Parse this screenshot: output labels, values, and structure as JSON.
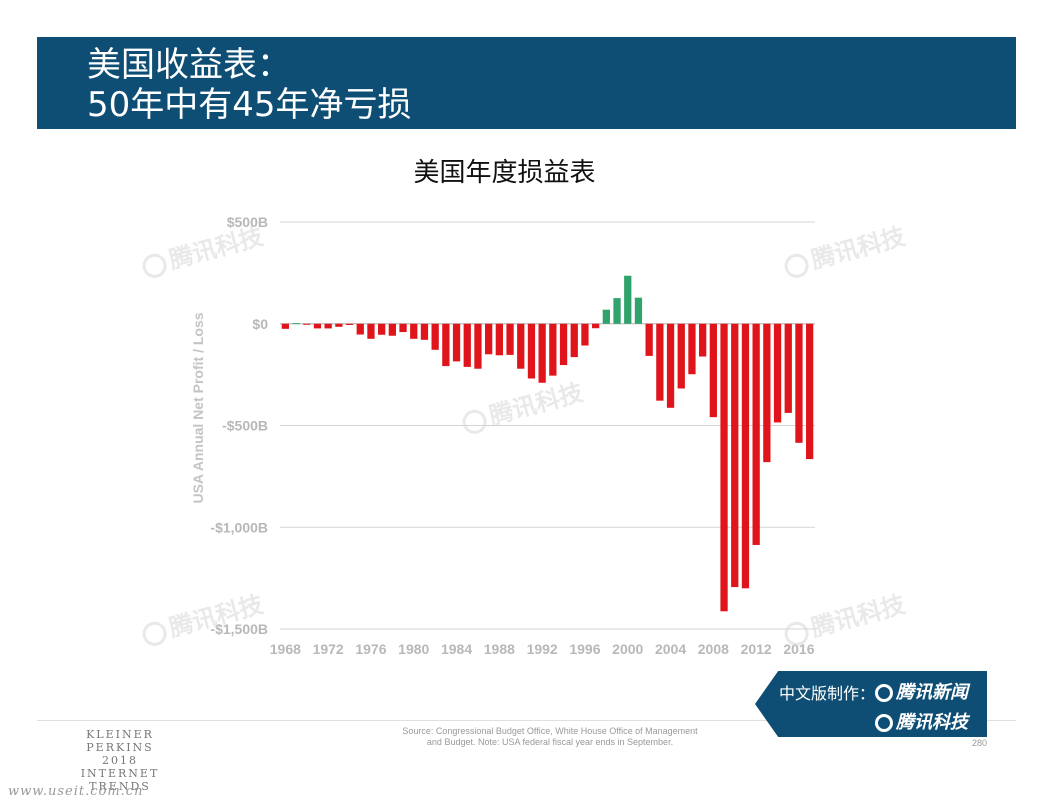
{
  "header": {
    "line1": "美国收益表：",
    "line2": "50年中有45年净亏损"
  },
  "chart_data": {
    "type": "bar",
    "title": "美国年度损益表",
    "ylabel": "USA Annual Net Profit / Loss",
    "xlabel": "",
    "ylim": [
      -1500,
      500
    ],
    "grid": true,
    "y_ticks": [
      {
        "value": 500,
        "label": "$500B"
      },
      {
        "value": 0,
        "label": "$0"
      },
      {
        "value": -500,
        "label": "-$500B"
      },
      {
        "value": -1000,
        "label": "-$1,000B"
      },
      {
        "value": -1500,
        "label": "-$1,500B"
      }
    ],
    "x_tick_labels": [
      "1968",
      "1972",
      "1976",
      "1980",
      "1984",
      "1988",
      "1992",
      "1996",
      "2000",
      "2004",
      "2008",
      "2012",
      "2016"
    ],
    "years": [
      1968,
      1969,
      1970,
      1971,
      1972,
      1973,
      1974,
      1975,
      1976,
      1977,
      1978,
      1979,
      1980,
      1981,
      1982,
      1983,
      1984,
      1985,
      1986,
      1987,
      1988,
      1989,
      1990,
      1991,
      1992,
      1993,
      1994,
      1995,
      1996,
      1997,
      1998,
      1999,
      2000,
      2001,
      2002,
      2003,
      2004,
      2005,
      2006,
      2007,
      2008,
      2009,
      2010,
      2011,
      2012,
      2013,
      2014,
      2015,
      2016,
      2017
    ],
    "values": [
      -25,
      3,
      -3,
      -23,
      -23,
      -15,
      -6,
      -53,
      -74,
      -54,
      -59,
      -41,
      -74,
      -79,
      -128,
      -208,
      -185,
      -212,
      -221,
      -150,
      -155,
      -153,
      -221,
      -269,
      -290,
      -255,
      -203,
      -164,
      -107,
      -22,
      69,
      126,
      236,
      128,
      -158,
      -378,
      -413,
      -318,
      -248,
      -161,
      -459,
      -1413,
      -1294,
      -1300,
      -1087,
      -680,
      -485,
      -438,
      -585,
      -665
    ],
    "colors": {
      "deficit": "#e0151b",
      "surplus": "#2fa36b"
    }
  },
  "watermark": "腾讯科技",
  "footer": {
    "logo_lines": [
      "KLEINER PERKINS",
      "2018",
      "INTERNET TRENDS"
    ],
    "source_line1": "Source: Congressional Budget Office, White House Office of Management",
    "source_line2": "and Budget. Note: USA federal fiscal year ends in September.",
    "page_number": "280",
    "credit_label": "中文版制作：",
    "credit_news": "腾讯新闻",
    "credit_tech": "腾讯科技",
    "site_url": "www.useit.com.cn"
  }
}
